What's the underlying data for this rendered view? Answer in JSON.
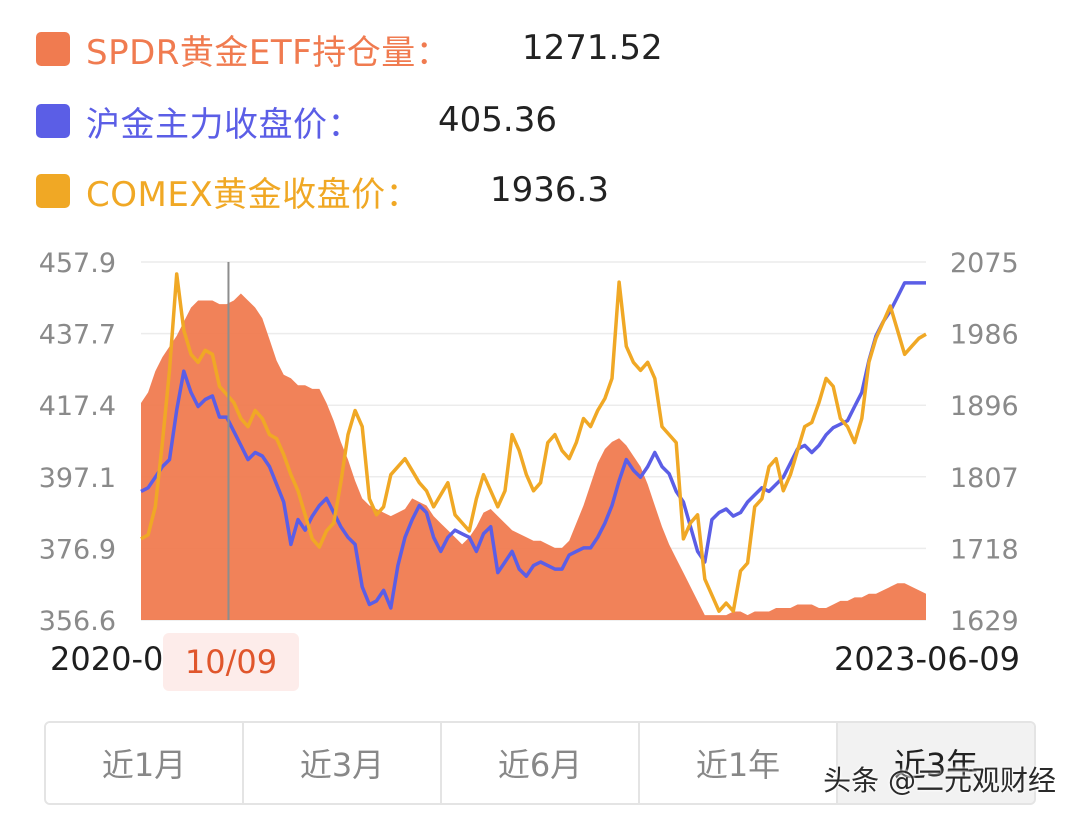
{
  "legend": [
    {
      "label": "SPDR黄金ETF持仓量：",
      "value": "1271.52",
      "color": "#f07b50"
    },
    {
      "label": "沪金主力收盘价：",
      "value": "405.36",
      "color": "#5b5ee6"
    },
    {
      "label": "COMEX黄金收盘价：",
      "value": "1936.3",
      "color": "#f0a825"
    }
  ],
  "x_axis": {
    "start_label": "2020-0",
    "tooltip_label": "10/09",
    "end_label": "2023-06-09"
  },
  "range_tabs": [
    {
      "label": "近1月"
    },
    {
      "label": "近3月"
    },
    {
      "label": "近6月"
    },
    {
      "label": "近1年"
    },
    {
      "label": "近3年",
      "active": true
    }
  ],
  "watermark": "头条 @二元观财经",
  "chart_data": {
    "type": "line",
    "x_range": [
      "2020-06-09",
      "2023-06-09"
    ],
    "left_axis": {
      "ticks": [
        "457.9",
        "437.7",
        "417.4",
        "397.1",
        "376.9",
        "356.6"
      ],
      "range": [
        356.6,
        457.9
      ]
    },
    "right_axis": {
      "ticks": [
        "2075",
        "1986",
        "1896",
        "1807",
        "1718",
        "1629"
      ],
      "range": [
        1629,
        2075
      ]
    },
    "grid": true,
    "crosshair_date": "2020-10-09",
    "series": [
      {
        "name": "SPDR黄金ETF持仓量",
        "style": "area",
        "axis": "left",
        "color": "#f07b50",
        "values": [
          418,
          421,
          427,
          431,
          434,
          437,
          441,
          445,
          447,
          447,
          447,
          446,
          446,
          447,
          449,
          447,
          445,
          442,
          436,
          430,
          426,
          425,
          423,
          423,
          422,
          422,
          418,
          413,
          407,
          402,
          396,
          391,
          389,
          388,
          387,
          386,
          387,
          388,
          391,
          390,
          389,
          386,
          384,
          382,
          380,
          378,
          380,
          383,
          387,
          388,
          386,
          384,
          382,
          381,
          380,
          379,
          379,
          378,
          377,
          377,
          379,
          384,
          389,
          395,
          401,
          405,
          407,
          408,
          406,
          403,
          400,
          395,
          389,
          383,
          378,
          374,
          370,
          366,
          362,
          358,
          358,
          358,
          358,
          359,
          359,
          358,
          359,
          359,
          359,
          360,
          360,
          360,
          361,
          361,
          361,
          360,
          360,
          361,
          362,
          362,
          363,
          363,
          364,
          364,
          365,
          366,
          367,
          367,
          366,
          365,
          364
        ]
      },
      {
        "name": "沪金主力收盘价",
        "style": "line",
        "axis": "left",
        "color": "#5b5ee6",
        "values": [
          393,
          394,
          397,
          400,
          402,
          416,
          427,
          421,
          417,
          419,
          420,
          414,
          414,
          410,
          406,
          402,
          404,
          403,
          400,
          395,
          390,
          378,
          385,
          382,
          386,
          389,
          391,
          387,
          383,
          380,
          378,
          366,
          361,
          362,
          365,
          360,
          372,
          380,
          385,
          389,
          387,
          380,
          376,
          380,
          382,
          381,
          380,
          376,
          381,
          383,
          370,
          373,
          376,
          371,
          369,
          372,
          373,
          372,
          371,
          371,
          375,
          376,
          377,
          377,
          380,
          384,
          389,
          396,
          402,
          399,
          397,
          400,
          404,
          400,
          398,
          393,
          390,
          383,
          376,
          373,
          385,
          387,
          388,
          386,
          387,
          390,
          392,
          394,
          393,
          395,
          397,
          401,
          405,
          406,
          404,
          406,
          409,
          411,
          412,
          413,
          417,
          421,
          430,
          437,
          441,
          444,
          448,
          452,
          452,
          452,
          452
        ]
      },
      {
        "name": "COMEX黄金收盘价",
        "style": "line",
        "axis": "right",
        "color": "#f0a825",
        "values": [
          1730,
          1735,
          1770,
          1850,
          1940,
          2060,
          1990,
          1960,
          1950,
          1965,
          1960,
          1920,
          1910,
          1900,
          1880,
          1870,
          1890,
          1880,
          1860,
          1855,
          1835,
          1810,
          1790,
          1760,
          1730,
          1720,
          1740,
          1750,
          1800,
          1860,
          1890,
          1870,
          1780,
          1760,
          1770,
          1810,
          1820,
          1830,
          1815,
          1800,
          1790,
          1770,
          1785,
          1800,
          1760,
          1750,
          1740,
          1780,
          1810,
          1790,
          1770,
          1790,
          1860,
          1840,
          1810,
          1790,
          1800,
          1850,
          1860,
          1840,
          1830,
          1850,
          1880,
          1870,
          1890,
          1905,
          1930,
          2050,
          1970,
          1950,
          1940,
          1950,
          1930,
          1870,
          1860,
          1850,
          1730,
          1750,
          1760,
          1680,
          1660,
          1640,
          1650,
          1640,
          1690,
          1700,
          1770,
          1780,
          1820,
          1830,
          1790,
          1810,
          1840,
          1870,
          1875,
          1900,
          1930,
          1920,
          1880,
          1870,
          1850,
          1880,
          1950,
          1980,
          2000,
          2020,
          1990,
          1960,
          1970,
          1980,
          1985
        ]
      }
    ]
  }
}
